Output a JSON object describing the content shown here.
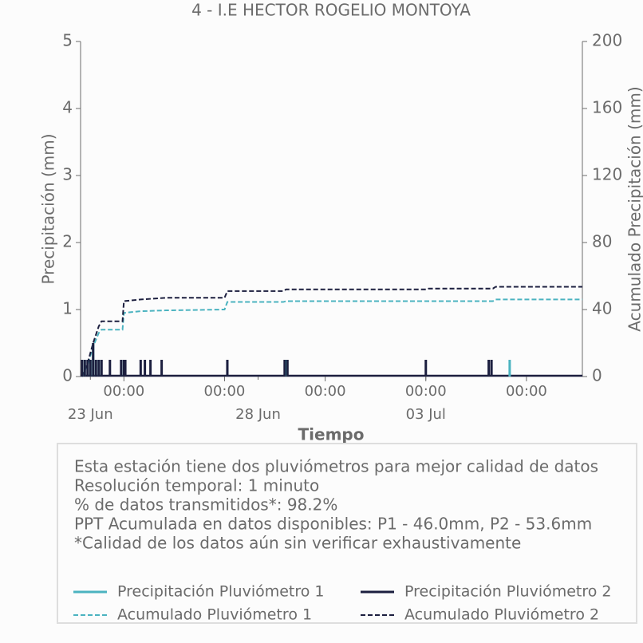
{
  "chart_data": {
    "type": "line",
    "title": "4 - I.E HECTOR ROGELIO MONTOYA",
    "xlabel": "Tiempo",
    "ylabel": "Precipitación (mm)",
    "y2label": "Acumulado Precipitación (mm)",
    "xlim": [
      "06-22 17:00",
      "07-07 16:00"
    ],
    "xticks": [
      {
        "value": "06-24 00:00",
        "label": "00:00"
      },
      {
        "value": "06-27 00:00",
        "label": "00:00"
      },
      {
        "value": "06-30 00:00",
        "label": "00:00"
      },
      {
        "value": "07-03 00:00",
        "label": "00:00"
      },
      {
        "value": "07-06 00:00",
        "label": "00:00"
      }
    ],
    "xdate_ticks": [
      {
        "value": "06-23 00:00",
        "label": "23 Jun"
      },
      {
        "value": "06-28 00:00",
        "label": "28 Jun"
      },
      {
        "value": "07-03 00:00",
        "label": "03 Jul"
      }
    ],
    "ylim": [
      0,
      5
    ],
    "yticks": [
      0,
      1,
      2,
      3,
      4,
      5
    ],
    "y2lim": [
      0,
      200
    ],
    "y2ticks": [
      0,
      40,
      80,
      120,
      160,
      200
    ],
    "x": [
      "06-22 18:00",
      "06-22 22:00",
      "06-23 02:00",
      "06-23 06:00",
      "06-23 08:00",
      "06-23 23:00",
      "06-24 00:00",
      "06-24 12:00",
      "06-25 06:00",
      "06-27 00:00",
      "06-27 02:00",
      "06-28 18:00",
      "06-28 20:00",
      "07-03 00:00",
      "07-03 02:00",
      "07-05 00:00",
      "07-05 02:00",
      "07-07 16:00"
    ],
    "series": [
      {
        "name": "Precipitación Pluviómetro 1",
        "color": "#4bb3c0",
        "style": "vlines",
        "x": [
          "06-22 20:00",
          "06-23 00:00",
          "06-23 02:00",
          "06-23 06:00",
          "06-24 00:00",
          "06-27 02:00",
          "06-28 20:00",
          "07-05 12:00"
        ],
        "values": [
          0.25,
          0.25,
          0.5,
          0.25,
          0.25,
          0.25,
          0.25,
          0.25
        ]
      },
      {
        "name": "Precipitación Pluviómetro 2",
        "color": "#1c1f3f",
        "style": "vlines",
        "x": [
          "06-22 18:00",
          "06-22 20:00",
          "06-22 22:00",
          "06-23 00:00",
          "06-23 02:00",
          "06-23 04:00",
          "06-23 06:00",
          "06-23 08:00",
          "06-23 14:00",
          "06-23 22:00",
          "06-24 00:00",
          "06-24 01:00",
          "06-24 12:00",
          "06-24 15:00",
          "06-24 19:00",
          "06-25 03:00",
          "06-27 02:00",
          "06-28 19:00",
          "06-28 21:00",
          "07-03 00:00",
          "07-04 21:00",
          "07-04 23:00"
        ],
        "values": [
          0.25,
          0.25,
          0.25,
          0.25,
          0.5,
          0.25,
          0.25,
          0.25,
          0.25,
          0.25,
          0.25,
          0.25,
          0.25,
          0.25,
          0.25,
          0.25,
          0.25,
          0.25,
          0.25,
          0.25,
          0.25,
          0.25
        ]
      },
      {
        "name": "Acumulado Pluviómetro 1",
        "color": "#4bb3c0",
        "style": "dashed",
        "axis": "y2",
        "values": [
          0,
          7,
          18,
          26,
          28,
          28,
          38,
          39,
          39.5,
          40,
          44.5,
          44.5,
          45,
          45,
          45,
          45,
          46,
          46
        ]
      },
      {
        "name": "Acumulado Pluviómetro 2",
        "color": "#1c1f3f",
        "style": "dashed",
        "axis": "y2",
        "values": [
          0,
          8,
          20,
          30,
          33,
          33,
          45,
          46,
          47,
          47,
          51,
          51,
          52,
          52,
          52.5,
          52.5,
          53.6,
          53.6
        ]
      }
    ]
  },
  "info_lines": [
    "Esta estación tiene dos pluviómetros para mejor calidad de datos",
    "Resolución temporal: 1 minuto",
    "% de datos transmitidos*: 98.2%",
    "PPT Acumulada en datos disponibles: P1 - 46.0mm, P2 - 53.6mm",
    "*Calidad de los datos aún sin verificar exhaustivamente"
  ]
}
